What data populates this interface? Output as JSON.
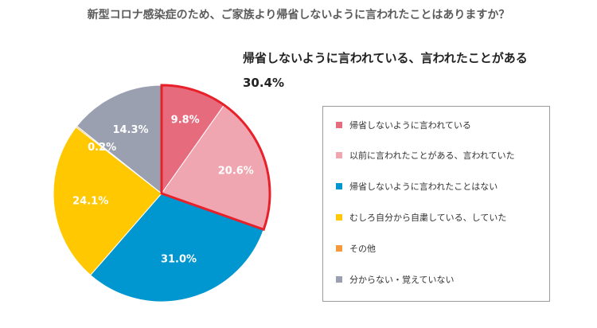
{
  "title": "新型コロナ感染症のため、ご家族より帰省しないように言われたことはありますか？",
  "highlight": {
    "label": "帰省しないように言われている、言われたことがある",
    "value": "30.4%"
  },
  "chart_data": {
    "type": "pie",
    "title": "新型コロナ感染症のため、ご家族より帰省しないように言われたことはありますか？",
    "start": "12 o'clock, clockwise",
    "highlighted_slices": [
      0,
      1
    ],
    "highlight_outline_color": "#e8202a",
    "slices": [
      {
        "label": "帰省しないように言われている",
        "value": 9.8,
        "value_label": "9.8%",
        "color": "#e66b7d"
      },
      {
        "label": "以前に言われたことがある、言われていた",
        "value": 20.6,
        "value_label": "20.6%",
        "color": "#f0a6b0"
      },
      {
        "label": "帰省しないように言われたことはない",
        "value": 31.0,
        "value_label": "31.0%",
        "color": "#0096cf"
      },
      {
        "label": "むしろ自分から自粛している、していた",
        "value": 24.1,
        "value_label": "24.1%",
        "color": "#ffc800"
      },
      {
        "label": "その他",
        "value": 0.2,
        "value_label": "0.2%",
        "color": "#f39a3a"
      },
      {
        "label": "分からない・覚えていない",
        "value": 14.3,
        "value_label": "14.3%",
        "color": "#9aa0b0"
      }
    ],
    "legend_position": "right"
  }
}
